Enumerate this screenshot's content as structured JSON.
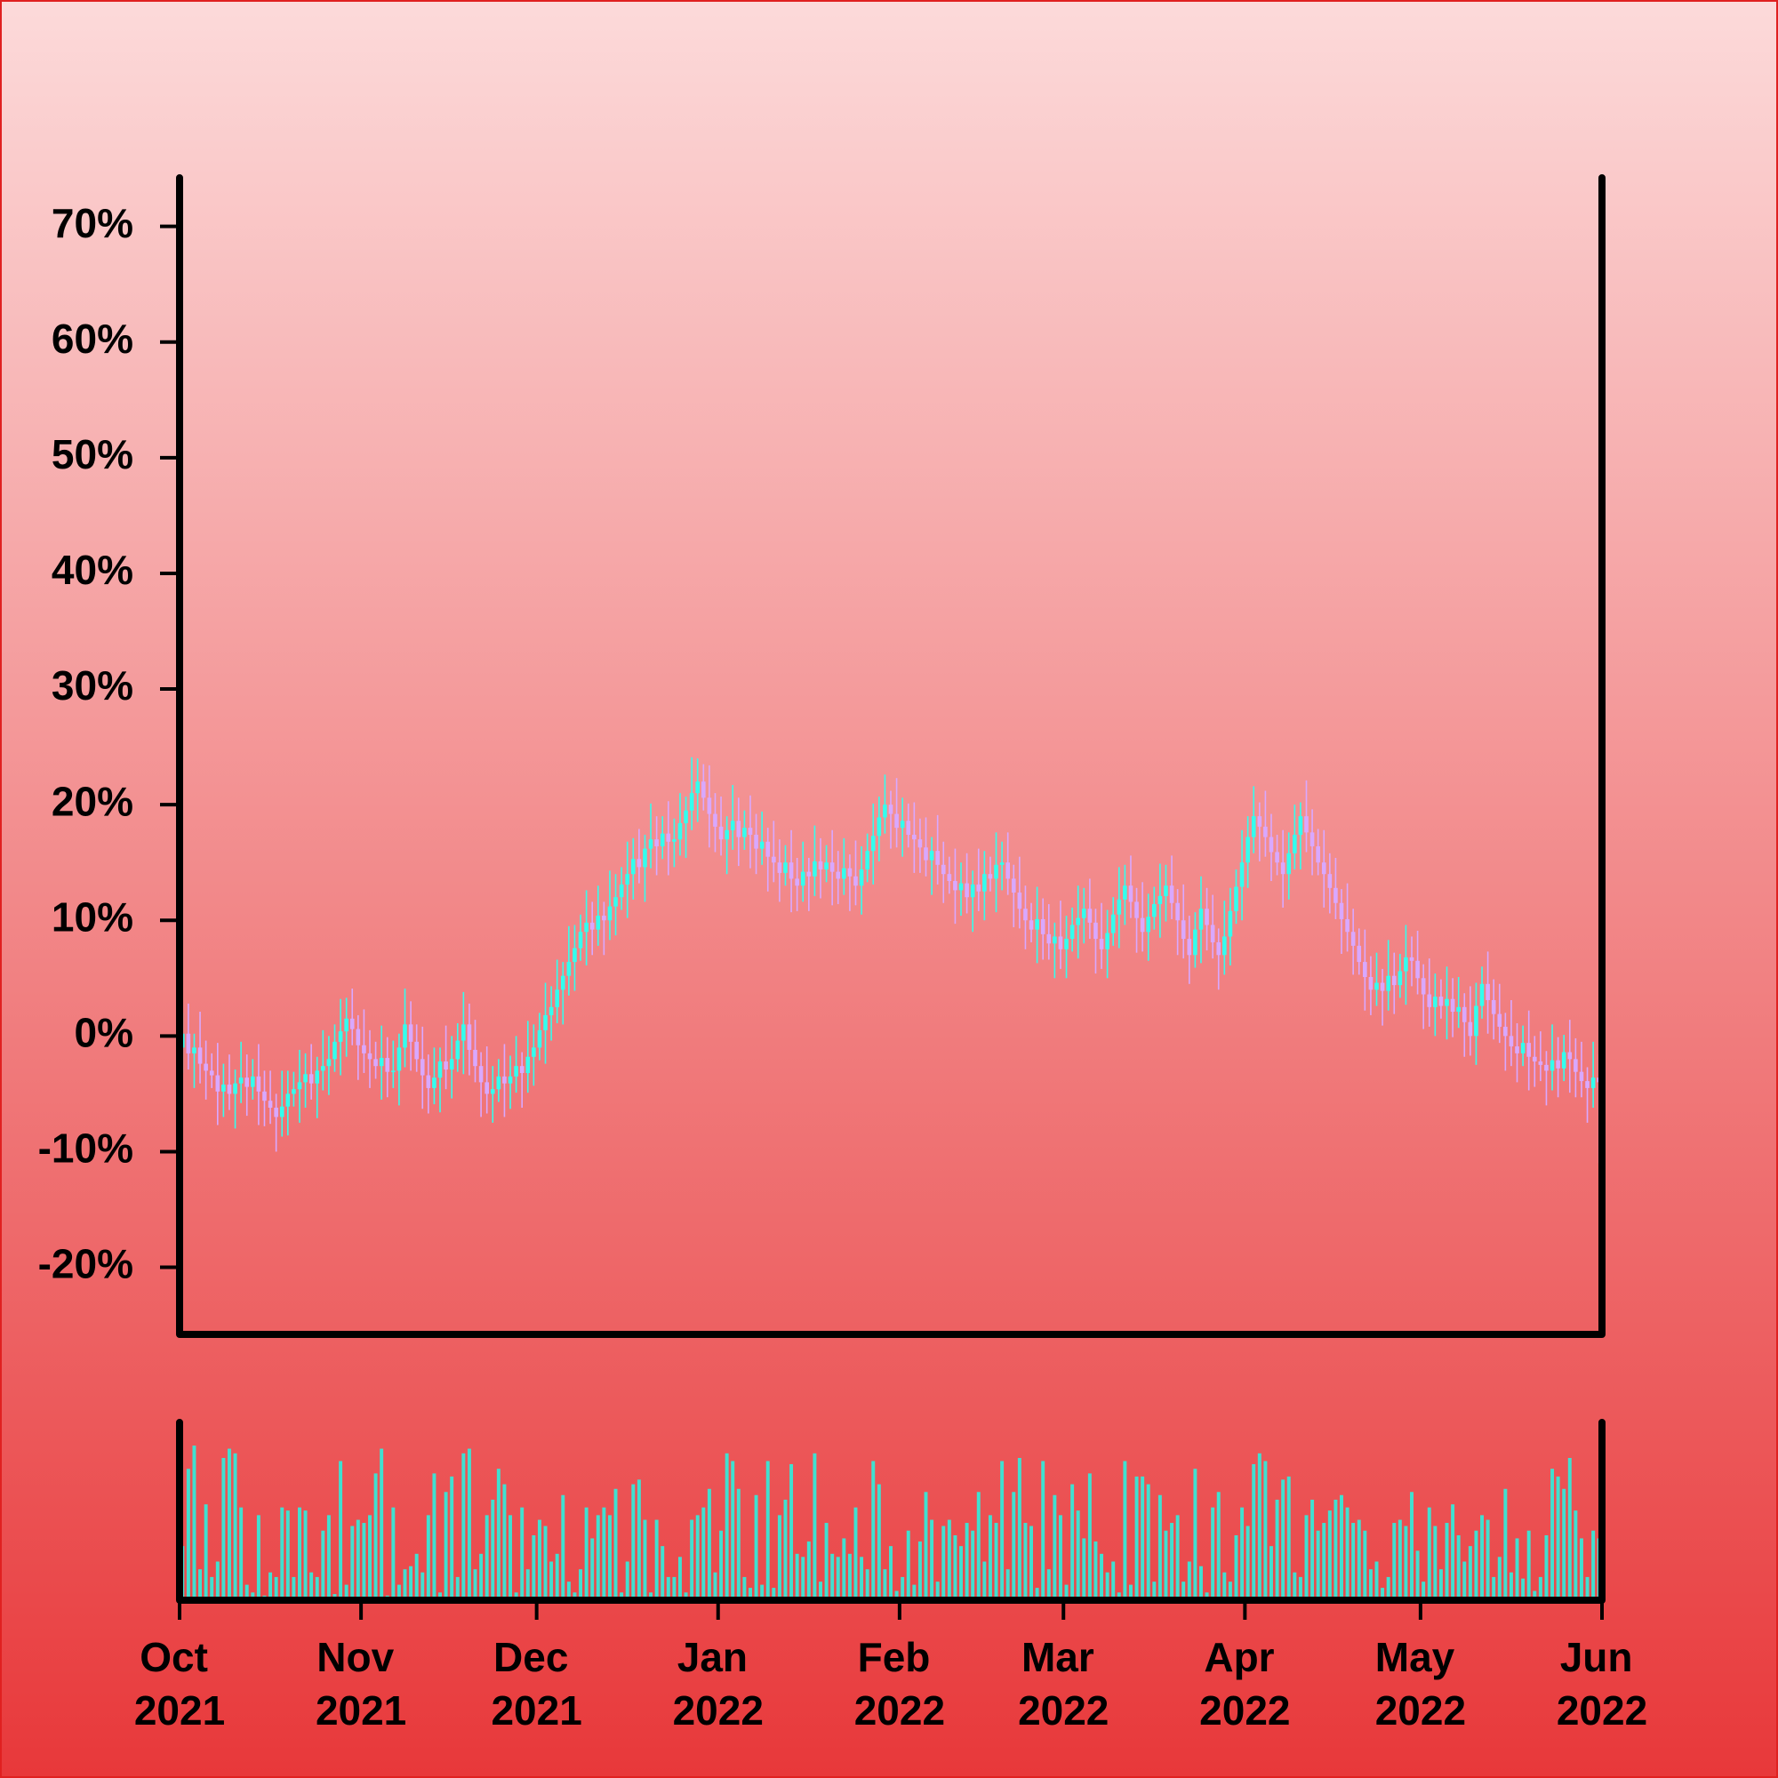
{
  "chart_data": {
    "type": "candlestick",
    "up_color": "#33ffee",
    "down_color": "#d9a8ff",
    "volume_color": "#40e0d0",
    "xlim": [
      0,
      243
    ],
    "xticks": [
      {
        "value": 0,
        "label": "Oct 2021"
      },
      {
        "value": 31,
        "label": "Nov 2021"
      },
      {
        "value": 61,
        "label": "Dec 2021"
      },
      {
        "value": 92,
        "label": "Jan 2022"
      },
      {
        "value": 123,
        "label": "Feb 2022"
      },
      {
        "value": 151,
        "label": "Mar 2022"
      },
      {
        "value": 182,
        "label": "Apr 2022"
      },
      {
        "value": 212,
        "label": "May 2022"
      },
      {
        "value": 243,
        "label": "Jun 2022"
      }
    ],
    "ylim": [
      -25.8,
      74.2
    ],
    "yticks": [
      {
        "value": -20,
        "label": "-20%"
      },
      {
        "value": -10,
        "label": "-10%"
      },
      {
        "value": 0,
        "label": "0%"
      },
      {
        "value": 10,
        "label": "10%"
      },
      {
        "value": 20,
        "label": "20%"
      },
      {
        "value": 30,
        "label": "30%"
      },
      {
        "value": 40,
        "label": "40%"
      },
      {
        "value": 50,
        "label": "50%"
      },
      {
        "value": 60,
        "label": "60%"
      },
      {
        "value": 70,
        "label": "70%"
      }
    ],
    "volume_ylim": [
      0,
      115
    ],
    "open": [
      -1.0,
      0.2,
      -1.5,
      -1.0,
      -2.4,
      -3.0,
      -3.4,
      -4.8,
      -4.2,
      -5.0,
      -4.1,
      -3.6,
      -4.4,
      -3.5,
      -4.8,
      -5.6,
      -6.2,
      -7.0,
      -6.1,
      -5.0,
      -4.6,
      -4.0,
      -3.3,
      -4.1,
      -3.0,
      -2.6,
      -2.0,
      -0.5,
      0.4,
      1.5,
      0.6,
      -0.8,
      -1.5,
      -2.0,
      -2.6,
      -1.9,
      -3.1,
      -3.0,
      -1.0,
      1.0,
      -0.5,
      -2.0,
      -3.4,
      -4.5,
      -3.6,
      -2.2,
      -2.9,
      -2.0,
      -0.4,
      1.0,
      -1.2,
      -2.6,
      -4.0,
      -5.0,
      -4.6,
      -3.5,
      -4.1,
      -3.5,
      -2.6,
      -3.2,
      -1.8,
      -1.0,
      0.5,
      1.8,
      2.5,
      4.0,
      5.2,
      6.4,
      7.6,
      9.0,
      9.8,
      9.2,
      10.4,
      10.0,
      11.2,
      12.0,
      13.1,
      14.0,
      15.3,
      14.6,
      16.2,
      17.0,
      16.4,
      17.5,
      16.8,
      17.0,
      18.4,
      19.5,
      21.0,
      22.0,
      20.6,
      19.2,
      18.1,
      17.0,
      17.8,
      18.6,
      17.2,
      18.0,
      17.4,
      16.2,
      16.8,
      15.5,
      15.0,
      14.1,
      15.0,
      13.6,
      13.0,
      14.2,
      13.8,
      15.1,
      14.4,
      15.0,
      14.2,
      13.6,
      14.5,
      13.8,
      13.0,
      14.4,
      16.0,
      17.3,
      18.9,
      20.0,
      19.2,
      18.0,
      18.6,
      17.4,
      17.0,
      16.3,
      15.2,
      16.0,
      14.8,
      14.0,
      13.4,
      12.6,
      13.2,
      12.0,
      13.1,
      12.5,
      14.0,
      13.6,
      14.8,
      15.0,
      13.6,
      12.4,
      11.0,
      10.0,
      9.2,
      10.1,
      8.8,
      8.0,
      8.6,
      7.5,
      8.4,
      9.6,
      10.2,
      11.0,
      9.8,
      8.4,
      7.5,
      8.9,
      10.5,
      11.8,
      13.0,
      11.6,
      10.2,
      9.0,
      10.3,
      11.4,
      12.1,
      13.0,
      11.5,
      10.0,
      8.4,
      7.0,
      9.2,
      11.0,
      9.6,
      8.1,
      7.0,
      8.6,
      10.8,
      12.9,
      15.0,
      17.2,
      19.0,
      18.1,
      17.2,
      15.9,
      15.0,
      14.0,
      15.8,
      17.4,
      19.0,
      17.6,
      16.4,
      15.0,
      14.0,
      12.8,
      11.5,
      10.1,
      9.0,
      7.8,
      6.4,
      5.1,
      4.0,
      4.6,
      3.9,
      5.2,
      4.4,
      5.6,
      6.8,
      6.5,
      5.0,
      3.6,
      2.5,
      3.4,
      2.6,
      3.2,
      2.1,
      2.5,
      1.2,
      0.0,
      2.6,
      4.5,
      3.1,
      1.9,
      0.8,
      0.0,
      -0.9,
      -1.5,
      -0.6,
      -1.8,
      -2.2,
      -2.5,
      -3.0,
      -2.1,
      -2.8,
      -1.4,
      -2.0,
      -3.1,
      -3.9,
      -4.5,
      -3.6
    ],
    "high": [
      2.0,
      2.8,
      0.2,
      2.1,
      -0.4,
      -1.5,
      -0.6,
      -2.4,
      -1.6,
      -2.9,
      -0.5,
      -1.6,
      -2.0,
      -0.7,
      -3.0,
      -3.0,
      -5.0,
      -3.0,
      -3.0,
      -3.1,
      -1.2,
      -1.5,
      -0.7,
      -1.8,
      0.5,
      0.0,
      1.0,
      3.2,
      3.3,
      4.1,
      1.8,
      2.3,
      0.5,
      -0.5,
      0.9,
      -0.1,
      -0.4,
      0.2,
      4.1,
      3.0,
      1.0,
      0.8,
      -1.6,
      -1.0,
      -1.0,
      0.9,
      0.0,
      1.1,
      3.8,
      2.8,
      1.4,
      -1.4,
      -0.9,
      -2.6,
      -2.0,
      -0.7,
      -1.7,
      0.0,
      -1.4,
      1.3,
      1.0,
      2.0,
      4.6,
      4.3,
      6.6,
      6.4,
      9.5,
      9.6,
      10.5,
      12.6,
      11.6,
      13.0,
      11.6,
      14.3,
      14.0,
      14.6,
      16.8,
      17.1,
      17.9,
      17.4,
      20.1,
      19.0,
      19.0,
      20.3,
      18.8,
      21.0,
      20.7,
      24.1,
      24.0,
      23.5,
      23.4,
      21.0,
      20.7,
      19.0,
      21.7,
      20.6,
      19.5,
      20.8,
      19.2,
      19.4,
      18.0,
      18.6,
      17.0,
      16.5,
      17.8,
      15.4,
      16.8,
      15.4,
      18.2,
      17.1,
      16.5,
      17.8,
      16.0,
      17.1,
      15.7,
      16.9,
      16.4,
      17.5,
      20.1,
      20.7,
      22.6,
      21.2,
      22.3,
      20.6,
      20.1,
      20.2,
      18.8,
      18.9,
      17.2,
      19.1,
      16.8,
      15.5,
      16.2,
      15.0,
      15.8,
      14.3,
      16.2,
      16.0,
      15.5,
      17.6,
      16.8,
      17.6,
      14.8,
      15.5,
      13.0,
      11.5,
      12.9,
      11.9,
      11.4,
      9.8,
      11.7,
      10.4,
      11.1,
      13.0,
      12.8,
      13.6,
      11.0,
      11.5,
      10.9,
      12.0,
      14.6,
      14.8,
      15.6,
      12.8,
      13.3,
      12.3,
      12.9,
      14.9,
      14.8,
      15.6,
      12.7,
      13.1,
      10.4,
      10.7,
      13.8,
      12.8,
      12.2,
      9.3,
      11.7,
      12.8,
      14.4,
      17.8,
      19.0,
      21.6,
      20.2,
      21.2,
      19.2,
      17.4,
      17.8,
      17.6,
      20.0,
      20.2,
      22.1,
      19.6,
      17.9,
      17.8,
      15.8,
      15.4,
      12.7,
      13.2,
      11.0,
      9.3,
      9.2,
      6.9,
      7.2,
      5.8,
      8.3,
      7.2,
      7.1,
      9.6,
      8.6,
      9.1,
      6.2,
      6.7,
      5.4,
      4.9,
      6.0,
      5.0,
      5.1,
      3.7,
      4.3,
      4.6,
      6.0,
      7.3,
      4.9,
      4.5,
      2.0,
      3.1,
      1.1,
      0.9,
      2.2,
      0.0,
      0.4,
      -1.3,
      1.0,
      -0.1,
      0.1,
      1.4,
      -0.2,
      -0.5,
      -2.7,
      -0.5,
      -1.6
    ],
    "low": [
      -3.2,
      -2.9,
      -4.5,
      -4.1,
      -5.5,
      -4.5,
      -7.7,
      -7.0,
      -6.4,
      -8.0,
      -5.8,
      -6.9,
      -5.5,
      -7.7,
      -7.8,
      -7.6,
      -10.0,
      -8.7,
      -8.6,
      -6.1,
      -7.5,
      -6.2,
      -5.5,
      -7.1,
      -4.7,
      -5.1,
      -3.1,
      -3.4,
      -1.8,
      -0.8,
      -3.8,
      -3.2,
      -4.5,
      -3.7,
      -5.5,
      -5.3,
      -4.5,
      -6.0,
      -2.7,
      -3.0,
      -3.1,
      -6.3,
      -6.7,
      -5.9,
      -6.6,
      -4.6,
      -5.4,
      -3.1,
      -3.3,
      -3.4,
      -4.0,
      -7.0,
      -6.7,
      -7.5,
      -5.7,
      -7.0,
      -6.3,
      -4.9,
      -6.2,
      -4.9,
      -4.3,
      -2.1,
      -2.4,
      -0.4,
      1.1,
      1.0,
      3.5,
      3.9,
      6.5,
      6.1,
      7.0,
      7.8,
      7.0,
      8.3,
      8.7,
      10.9,
      10.2,
      11.8,
      13.2,
      11.6,
      14.5,
      13.9,
      15.3,
      13.9,
      14.6,
      15.6,
      15.4,
      17.8,
      18.5,
      19.5,
      16.3,
      15.9,
      15.6,
      14.0,
      16.1,
      14.7,
      16.1,
      14.5,
      14.0,
      14.8,
      12.5,
      13.3,
      11.6,
      13.0,
      10.7,
      10.8,
      11.6,
      10.8,
      12.1,
      11.9,
      13.3,
      11.3,
      11.4,
      12.2,
      10.8,
      11.3,
      10.5,
      13.3,
      13.1,
      15.1,
      17.5,
      16.2,
      16.3,
      15.5,
      16.3,
      14.1,
      14.1,
      13.8,
      12.2,
      13.1,
      11.5,
      12.3,
      9.7,
      10.4,
      10.6,
      9.0,
      10.8,
      10.0,
      12.5,
      10.7,
      12.6,
      12.2,
      9.4,
      9.3,
      7.5,
      8.1,
      6.3,
      6.6,
      6.6,
      5.0,
      5.8,
      5.0,
      7.3,
      6.7,
      8.0,
      8.4,
      5.4,
      5.8,
      5.0,
      7.8,
      7.6,
      9.6,
      10.2,
      7.2,
      7.3,
      6.5,
      9.2,
      8.5,
      9.9,
      10.1,
      7.0,
      6.7,
      4.5,
      5.9,
      6.3,
      7.4,
      6.7,
      4.0,
      5.3,
      6.1,
      9.7,
      10.0,
      12.8,
      15.8,
      15.1,
      15.5,
      13.4,
      13.9,
      11.1,
      11.8,
      14.4,
      14.4,
      15.9,
      13.9,
      13.9,
      11.1,
      10.6,
      10.1,
      7.1,
      7.3,
      5.3,
      5.3,
      2.2,
      1.8,
      2.6,
      0.9,
      2.2,
      1.9,
      3.3,
      2.7,
      4.3,
      3.6,
      0.6,
      0.8,
      0.0,
      1.5,
      -0.3,
      -0.1,
      0.7,
      -1.8,
      -1.7,
      -2.5,
      1.5,
      0.2,
      -0.3,
      -0.6,
      -3.0,
      -2.6,
      -4.0,
      -2.6,
      -4.7,
      -4.4,
      -3.9,
      -6.0,
      -4.7,
      -5.3,
      -3.9,
      -4.9,
      -5.3,
      -5.3,
      -7.5,
      -6.2,
      -11.0
    ],
    "close": [
      0.2,
      -1.5,
      -1.0,
      -2.4,
      -3.0,
      -3.4,
      -4.8,
      -4.2,
      -5.0,
      -4.1,
      -3.6,
      -4.4,
      -3.5,
      -4.8,
      -5.6,
      -6.2,
      -7.0,
      -6.1,
      -5.0,
      -4.6,
      -4.0,
      -3.3,
      -4.1,
      -3.0,
      -2.6,
      -2.0,
      -0.5,
      0.4,
      1.5,
      0.6,
      -0.8,
      -1.5,
      -2.0,
      -2.6,
      -1.9,
      -3.1,
      -3.0,
      -1.0,
      1.0,
      -0.5,
      -2.0,
      -3.4,
      -4.5,
      -3.6,
      -2.2,
      -2.9,
      -2.0,
      -0.4,
      1.0,
      -1.2,
      -2.6,
      -4.0,
      -5.0,
      -4.6,
      -3.5,
      -4.1,
      -3.5,
      -2.6,
      -3.2,
      -1.8,
      -1.0,
      0.5,
      1.8,
      2.5,
      4.0,
      5.2,
      6.4,
      7.6,
      9.0,
      9.8,
      9.2,
      10.4,
      10.0,
      11.2,
      12.0,
      13.1,
      14.0,
      15.3,
      14.6,
      16.2,
      17.0,
      16.4,
      17.5,
      16.8,
      17.0,
      18.4,
      19.5,
      21.0,
      22.0,
      20.6,
      19.2,
      18.1,
      17.0,
      17.8,
      18.6,
      17.2,
      18.0,
      17.4,
      16.2,
      16.8,
      15.5,
      15.0,
      14.1,
      15.0,
      13.6,
      13.0,
      14.2,
      13.8,
      15.1,
      14.4,
      15.0,
      14.2,
      13.6,
      14.5,
      13.8,
      13.0,
      14.4,
      16.0,
      17.3,
      18.9,
      20.0,
      19.2,
      18.0,
      18.6,
      17.4,
      17.0,
      16.3,
      15.2,
      16.0,
      14.8,
      14.0,
      13.4,
      12.6,
      13.2,
      12.0,
      13.1,
      12.5,
      14.0,
      13.6,
      14.8,
      15.0,
      13.6,
      12.4,
      11.0,
      10.0,
      9.2,
      10.1,
      8.8,
      8.0,
      8.6,
      7.5,
      8.4,
      9.6,
      10.2,
      11.0,
      9.8,
      8.4,
      7.5,
      8.9,
      10.5,
      11.8,
      13.0,
      11.6,
      10.2,
      9.0,
      10.3,
      11.4,
      12.1,
      13.0,
      11.5,
      10.0,
      8.4,
      7.0,
      9.2,
      11.0,
      9.6,
      8.1,
      7.0,
      8.6,
      10.8,
      12.9,
      15.0,
      17.2,
      19.0,
      18.1,
      17.2,
      15.9,
      15.0,
      14.0,
      15.8,
      17.4,
      19.0,
      17.6,
      16.4,
      15.0,
      14.0,
      12.8,
      11.5,
      10.1,
      9.0,
      7.8,
      6.4,
      5.1,
      4.0,
      4.6,
      3.9,
      5.2,
      4.4,
      5.6,
      6.8,
      6.5,
      5.0,
      3.6,
      2.5,
      3.4,
      2.6,
      3.2,
      2.1,
      2.5,
      1.2,
      0.0,
      2.6,
      4.5,
      3.1,
      1.9,
      0.8,
      0.0,
      -0.9,
      -1.5,
      -0.6,
      -1.8,
      -2.2,
      -2.5,
      -3.0,
      -2.1,
      -2.8,
      -1.4,
      -2.0,
      -3.1,
      -3.9,
      -4.5,
      -3.6,
      -4.0
    ],
    "volume": [
      35,
      85,
      100,
      20,
      62,
      15,
      25,
      92,
      98,
      95,
      60,
      10,
      5,
      55,
      3,
      18,
      15,
      60,
      58,
      15,
      60,
      58,
      18,
      15,
      45,
      55,
      4,
      90,
      10,
      48,
      52,
      50,
      55,
      82,
      98,
      3,
      60,
      10,
      20,
      22,
      30,
      18,
      55,
      82,
      5,
      70,
      80,
      15,
      95,
      98,
      20,
      30,
      55,
      65,
      85,
      75,
      55,
      5,
      60,
      20,
      42,
      52,
      48,
      25,
      30,
      68,
      12,
      5,
      20,
      60,
      40,
      55,
      60,
      55,
      72,
      5,
      25,
      75,
      78,
      52,
      5,
      52,
      35,
      15,
      15,
      28,
      5,
      52,
      55,
      60,
      72,
      18,
      45,
      95,
      90,
      72,
      15,
      8,
      68,
      10,
      90,
      8,
      55,
      65,
      88,
      30,
      28,
      38,
      95,
      12,
      50,
      30,
      28,
      40,
      30,
      60,
      28,
      20,
      90,
      75,
      20,
      35,
      6,
      15,
      45,
      10,
      38,
      70,
      52,
      12,
      48,
      52,
      42,
      35,
      50,
      45,
      70,
      25,
      55,
      50,
      90,
      20,
      70,
      92,
      50,
      48,
      8,
      90,
      20,
      68,
      55,
      10,
      75,
      58,
      40,
      82,
      38,
      30,
      18,
      25,
      5,
      90,
      10,
      80,
      80,
      75,
      12,
      68,
      45,
      50,
      55,
      12,
      25,
      85,
      22,
      5,
      60,
      70,
      18,
      12,
      42,
      60,
      48,
      88,
      95,
      90,
      35,
      65,
      78,
      80,
      18,
      15,
      55,
      65,
      45,
      50,
      58,
      65,
      68,
      60,
      50,
      52,
      45,
      20,
      25,
      8,
      15,
      50,
      52,
      48,
      70,
      32,
      12,
      60,
      48,
      20,
      50,
      62,
      42,
      25,
      35,
      45,
      55,
      52,
      15,
      28,
      72,
      18,
      40,
      14,
      45,
      6,
      15,
      42,
      85,
      80,
      72,
      92,
      58,
      40,
      15,
      45,
      40
    ]
  }
}
